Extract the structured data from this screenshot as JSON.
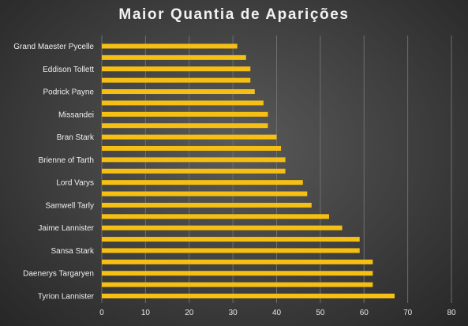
{
  "chart_data": {
    "type": "bar",
    "orientation": "horizontal",
    "title": "Maior Quantia de Aparições",
    "xlabel": "",
    "ylabel": "",
    "xlim": [
      0,
      80
    ],
    "x_ticks": [
      0,
      10,
      20,
      30,
      40,
      50,
      60,
      70,
      80
    ],
    "grid": true,
    "legend": "none",
    "bar_color": "#f5c013",
    "categories": [
      "Grand Maester Pycelle",
      "",
      "Eddison Tollett",
      "",
      "Podrick Payne",
      "",
      "Missandei",
      "",
      "Bran Stark",
      "",
      "Brienne of Tarth",
      "",
      "Lord Varys",
      "",
      "Samwell Tarly",
      "",
      "Jaime Lannister",
      "",
      "Sansa Stark",
      "",
      "Daenerys Targaryen",
      "",
      "Tyrion Lannister"
    ],
    "values": [
      31,
      33,
      34,
      34,
      35,
      37,
      38,
      38,
      40,
      41,
      42,
      42,
      46,
      47,
      48,
      52,
      55,
      59,
      59,
      62,
      62,
      62,
      67
    ]
  }
}
